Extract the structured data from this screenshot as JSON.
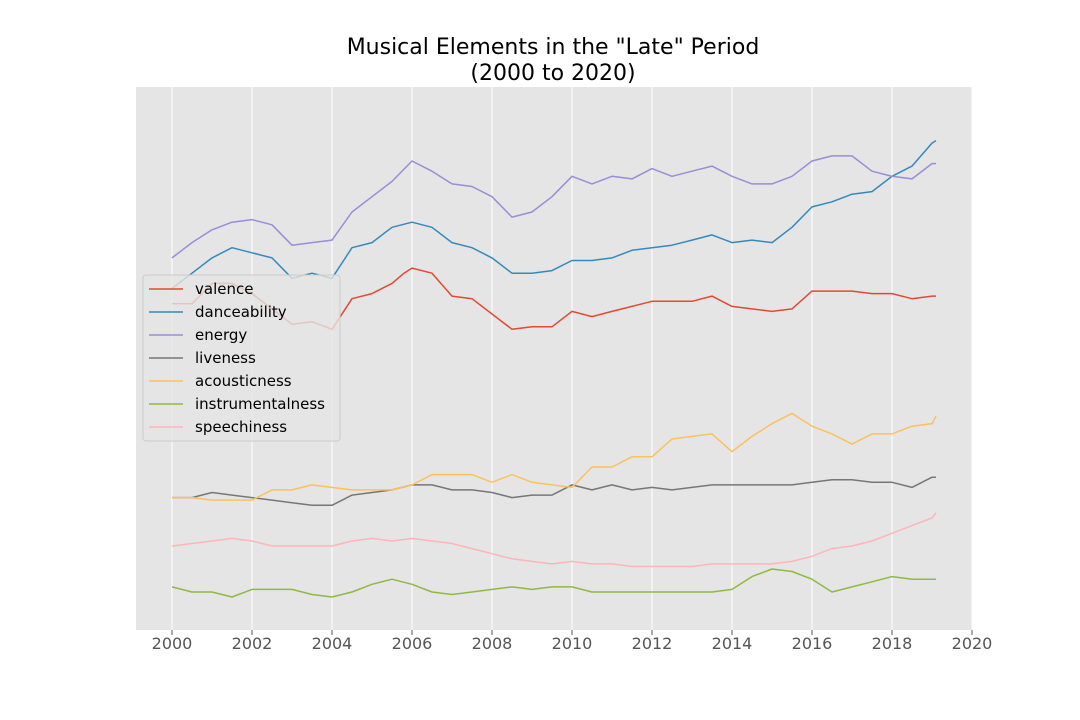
{
  "chart_data": {
    "type": "line",
    "title": "Musical Elements in the \"Late\" Period",
    "subtitle": "(2000 to 2020)",
    "xlabel": "",
    "ylabel": "",
    "xlim": [
      1999.1,
      2020.0
    ],
    "ylim": [
      0,
      1
    ],
    "x_ticks": [
      "2000",
      "2002",
      "2004",
      "2006",
      "2008",
      "2010",
      "2012",
      "2014",
      "2016",
      "2018",
      "2020"
    ],
    "y_ticks_shown": false,
    "grid": true,
    "legend_position": "center-left",
    "series": [
      {
        "name": "valence",
        "color": "#E24A33",
        "points": [
          [
            2000.0,
            0.62
          ],
          [
            2000.5,
            0.62
          ],
          [
            2001.0,
            0.66
          ],
          [
            2001.5,
            0.66
          ],
          [
            2002.0,
            0.64
          ],
          [
            2002.5,
            0.61
          ],
          [
            2003.0,
            0.58
          ],
          [
            2003.5,
            0.585
          ],
          [
            2004.0,
            0.57
          ],
          [
            2004.5,
            0.63
          ],
          [
            2005.0,
            0.64
          ],
          [
            2005.5,
            0.66
          ],
          [
            2005.8,
            0.68
          ],
          [
            2006.0,
            0.69
          ],
          [
            2006.5,
            0.68
          ],
          [
            2007.0,
            0.635
          ],
          [
            2007.5,
            0.63
          ],
          [
            2008.0,
            0.6
          ],
          [
            2008.5,
            0.57
          ],
          [
            2009.0,
            0.575
          ],
          [
            2009.5,
            0.575
          ],
          [
            2010.0,
            0.605
          ],
          [
            2010.5,
            0.595
          ],
          [
            2011.0,
            0.605
          ],
          [
            2011.5,
            0.615
          ],
          [
            2012.0,
            0.625
          ],
          [
            2012.5,
            0.625
          ],
          [
            2013.0,
            0.625
          ],
          [
            2013.5,
            0.635
          ],
          [
            2014.0,
            0.615
          ],
          [
            2014.5,
            0.61
          ],
          [
            2015.0,
            0.605
          ],
          [
            2015.5,
            0.61
          ],
          [
            2016.0,
            0.645
          ],
          [
            2016.5,
            0.645
          ],
          [
            2017.0,
            0.645
          ],
          [
            2017.5,
            0.64
          ],
          [
            2018.0,
            0.64
          ],
          [
            2018.5,
            0.63
          ],
          [
            2019.0,
            0.635
          ],
          [
            2019.1,
            0.635
          ]
        ]
      },
      {
        "name": "danceability",
        "color": "#348ABD",
        "points": [
          [
            2000.0,
            0.65
          ],
          [
            2000.5,
            0.68
          ],
          [
            2001.0,
            0.71
          ],
          [
            2001.5,
            0.73
          ],
          [
            2002.0,
            0.72
          ],
          [
            2002.5,
            0.71
          ],
          [
            2003.0,
            0.67
          ],
          [
            2003.5,
            0.68
          ],
          [
            2004.0,
            0.67
          ],
          [
            2004.5,
            0.73
          ],
          [
            2005.0,
            0.74
          ],
          [
            2005.5,
            0.77
          ],
          [
            2006.0,
            0.78
          ],
          [
            2006.5,
            0.77
          ],
          [
            2007.0,
            0.74
          ],
          [
            2007.5,
            0.73
          ],
          [
            2008.0,
            0.71
          ],
          [
            2008.5,
            0.68
          ],
          [
            2009.0,
            0.68
          ],
          [
            2009.5,
            0.685
          ],
          [
            2010.0,
            0.705
          ],
          [
            2010.5,
            0.705
          ],
          [
            2011.0,
            0.71
          ],
          [
            2011.5,
            0.725
          ],
          [
            2012.0,
            0.73
          ],
          [
            2012.5,
            0.735
          ],
          [
            2013.0,
            0.745
          ],
          [
            2013.5,
            0.755
          ],
          [
            2014.0,
            0.74
          ],
          [
            2014.5,
            0.745
          ],
          [
            2015.0,
            0.74
          ],
          [
            2015.5,
            0.77
          ],
          [
            2016.0,
            0.81
          ],
          [
            2016.5,
            0.82
          ],
          [
            2017.0,
            0.835
          ],
          [
            2017.5,
            0.84
          ],
          [
            2018.0,
            0.87
          ],
          [
            2018.5,
            0.89
          ],
          [
            2019.0,
            0.935
          ],
          [
            2019.1,
            0.94
          ]
        ]
      },
      {
        "name": "energy",
        "color": "#988ED5",
        "points": [
          [
            2000.0,
            0.71
          ],
          [
            2000.5,
            0.74
          ],
          [
            2001.0,
            0.765
          ],
          [
            2001.5,
            0.78
          ],
          [
            2002.0,
            0.785
          ],
          [
            2002.5,
            0.775
          ],
          [
            2003.0,
            0.735
          ],
          [
            2003.5,
            0.74
          ],
          [
            2004.0,
            0.745
          ],
          [
            2004.5,
            0.8
          ],
          [
            2005.0,
            0.83
          ],
          [
            2005.5,
            0.86
          ],
          [
            2006.0,
            0.9
          ],
          [
            2006.5,
            0.88
          ],
          [
            2007.0,
            0.855
          ],
          [
            2007.5,
            0.85
          ],
          [
            2008.0,
            0.83
          ],
          [
            2008.5,
            0.79
          ],
          [
            2009.0,
            0.8
          ],
          [
            2009.5,
            0.83
          ],
          [
            2010.0,
            0.87
          ],
          [
            2010.5,
            0.855
          ],
          [
            2011.0,
            0.87
          ],
          [
            2011.5,
            0.865
          ],
          [
            2012.0,
            0.885
          ],
          [
            2012.5,
            0.87
          ],
          [
            2013.0,
            0.88
          ],
          [
            2013.5,
            0.89
          ],
          [
            2014.0,
            0.87
          ],
          [
            2014.5,
            0.855
          ],
          [
            2015.0,
            0.855
          ],
          [
            2015.5,
            0.87
          ],
          [
            2016.0,
            0.9
          ],
          [
            2016.5,
            0.91
          ],
          [
            2017.0,
            0.91
          ],
          [
            2017.5,
            0.88
          ],
          [
            2018.0,
            0.87
          ],
          [
            2018.5,
            0.865
          ],
          [
            2019.0,
            0.895
          ],
          [
            2019.1,
            0.895
          ]
        ]
      },
      {
        "name": "liveness",
        "color": "#777777",
        "points": [
          [
            2000.0,
            0.24
          ],
          [
            2000.5,
            0.24
          ],
          [
            2001.0,
            0.25
          ],
          [
            2001.5,
            0.245
          ],
          [
            2002.0,
            0.24
          ],
          [
            2002.5,
            0.235
          ],
          [
            2003.0,
            0.23
          ],
          [
            2003.5,
            0.225
          ],
          [
            2004.0,
            0.225
          ],
          [
            2004.5,
            0.245
          ],
          [
            2005.0,
            0.25
          ],
          [
            2005.5,
            0.255
          ],
          [
            2006.0,
            0.265
          ],
          [
            2006.5,
            0.265
          ],
          [
            2007.0,
            0.255
          ],
          [
            2007.5,
            0.255
          ],
          [
            2008.0,
            0.25
          ],
          [
            2008.5,
            0.24
          ],
          [
            2009.0,
            0.245
          ],
          [
            2009.5,
            0.245
          ],
          [
            2010.0,
            0.265
          ],
          [
            2010.5,
            0.255
          ],
          [
            2011.0,
            0.265
          ],
          [
            2011.5,
            0.255
          ],
          [
            2012.0,
            0.26
          ],
          [
            2012.5,
            0.255
          ],
          [
            2013.0,
            0.26
          ],
          [
            2013.5,
            0.265
          ],
          [
            2014.0,
            0.265
          ],
          [
            2014.5,
            0.265
          ],
          [
            2015.0,
            0.265
          ],
          [
            2015.5,
            0.265
          ],
          [
            2016.0,
            0.27
          ],
          [
            2016.5,
            0.275
          ],
          [
            2017.0,
            0.275
          ],
          [
            2017.5,
            0.27
          ],
          [
            2018.0,
            0.27
          ],
          [
            2018.5,
            0.26
          ],
          [
            2019.0,
            0.28
          ],
          [
            2019.1,
            0.28
          ]
        ]
      },
      {
        "name": "acousticness",
        "color": "#FBC15E",
        "points": [
          [
            2000.0,
            0.24
          ],
          [
            2000.5,
            0.24
          ],
          [
            2001.0,
            0.235
          ],
          [
            2001.5,
            0.235
          ],
          [
            2002.0,
            0.235
          ],
          [
            2002.5,
            0.255
          ],
          [
            2003.0,
            0.255
          ],
          [
            2003.5,
            0.265
          ],
          [
            2004.0,
            0.26
          ],
          [
            2004.5,
            0.255
          ],
          [
            2005.0,
            0.255
          ],
          [
            2005.5,
            0.255
          ],
          [
            2006.0,
            0.265
          ],
          [
            2006.5,
            0.285
          ],
          [
            2007.0,
            0.285
          ],
          [
            2007.5,
            0.285
          ],
          [
            2008.0,
            0.27
          ],
          [
            2008.5,
            0.285
          ],
          [
            2009.0,
            0.27
          ],
          [
            2009.5,
            0.265
          ],
          [
            2010.0,
            0.26
          ],
          [
            2010.5,
            0.3
          ],
          [
            2011.0,
            0.3
          ],
          [
            2011.5,
            0.32
          ],
          [
            2012.0,
            0.32
          ],
          [
            2012.5,
            0.355
          ],
          [
            2013.0,
            0.36
          ],
          [
            2013.5,
            0.365
          ],
          [
            2014.0,
            0.33
          ],
          [
            2014.5,
            0.36
          ],
          [
            2015.0,
            0.385
          ],
          [
            2015.5,
            0.405
          ],
          [
            2016.0,
            0.38
          ],
          [
            2016.5,
            0.365
          ],
          [
            2017.0,
            0.345
          ],
          [
            2017.5,
            0.365
          ],
          [
            2018.0,
            0.365
          ],
          [
            2018.5,
            0.38
          ],
          [
            2019.0,
            0.385
          ],
          [
            2019.1,
            0.4
          ]
        ]
      },
      {
        "name": "instrumentalness",
        "color": "#8EBA42",
        "points": [
          [
            2000.0,
            0.065
          ],
          [
            2000.5,
            0.055
          ],
          [
            2001.0,
            0.055
          ],
          [
            2001.5,
            0.045
          ],
          [
            2002.0,
            0.06
          ],
          [
            2002.5,
            0.06
          ],
          [
            2003.0,
            0.06
          ],
          [
            2003.5,
            0.05
          ],
          [
            2004.0,
            0.045
          ],
          [
            2004.5,
            0.055
          ],
          [
            2005.0,
            0.07
          ],
          [
            2005.5,
            0.08
          ],
          [
            2006.0,
            0.07
          ],
          [
            2006.5,
            0.055
          ],
          [
            2007.0,
            0.05
          ],
          [
            2007.5,
            0.055
          ],
          [
            2008.0,
            0.06
          ],
          [
            2008.5,
            0.065
          ],
          [
            2009.0,
            0.06
          ],
          [
            2009.5,
            0.065
          ],
          [
            2010.0,
            0.065
          ],
          [
            2010.5,
            0.055
          ],
          [
            2011.0,
            0.055
          ],
          [
            2011.5,
            0.055
          ],
          [
            2012.0,
            0.055
          ],
          [
            2012.5,
            0.055
          ],
          [
            2013.0,
            0.055
          ],
          [
            2013.5,
            0.055
          ],
          [
            2014.0,
            0.06
          ],
          [
            2014.5,
            0.085
          ],
          [
            2015.0,
            0.1
          ],
          [
            2015.5,
            0.095
          ],
          [
            2016.0,
            0.08
          ],
          [
            2016.5,
            0.055
          ],
          [
            2017.0,
            0.065
          ],
          [
            2017.5,
            0.075
          ],
          [
            2018.0,
            0.085
          ],
          [
            2018.5,
            0.08
          ],
          [
            2019.0,
            0.08
          ],
          [
            2019.1,
            0.08
          ]
        ]
      },
      {
        "name": "speechiness",
        "color": "#FFB5B8",
        "points": [
          [
            2000.0,
            0.145
          ],
          [
            2000.5,
            0.15
          ],
          [
            2001.0,
            0.155
          ],
          [
            2001.5,
            0.16
          ],
          [
            2002.0,
            0.155
          ],
          [
            2002.5,
            0.145
          ],
          [
            2003.0,
            0.145
          ],
          [
            2003.5,
            0.145
          ],
          [
            2004.0,
            0.145
          ],
          [
            2004.5,
            0.155
          ],
          [
            2005.0,
            0.16
          ],
          [
            2005.5,
            0.155
          ],
          [
            2006.0,
            0.16
          ],
          [
            2006.5,
            0.155
          ],
          [
            2007.0,
            0.15
          ],
          [
            2007.5,
            0.14
          ],
          [
            2008.0,
            0.13
          ],
          [
            2008.5,
            0.12
          ],
          [
            2009.0,
            0.115
          ],
          [
            2009.5,
            0.11
          ],
          [
            2010.0,
            0.115
          ],
          [
            2010.5,
            0.11
          ],
          [
            2011.0,
            0.11
          ],
          [
            2011.5,
            0.105
          ],
          [
            2012.0,
            0.105
          ],
          [
            2012.5,
            0.105
          ],
          [
            2013.0,
            0.105
          ],
          [
            2013.5,
            0.11
          ],
          [
            2014.0,
            0.11
          ],
          [
            2014.5,
            0.11
          ],
          [
            2015.0,
            0.11
          ],
          [
            2015.5,
            0.115
          ],
          [
            2016.0,
            0.125
          ],
          [
            2016.5,
            0.14
          ],
          [
            2017.0,
            0.145
          ],
          [
            2017.5,
            0.155
          ],
          [
            2018.0,
            0.17
          ],
          [
            2018.5,
            0.185
          ],
          [
            2019.0,
            0.2
          ],
          [
            2019.1,
            0.21
          ]
        ]
      }
    ]
  }
}
